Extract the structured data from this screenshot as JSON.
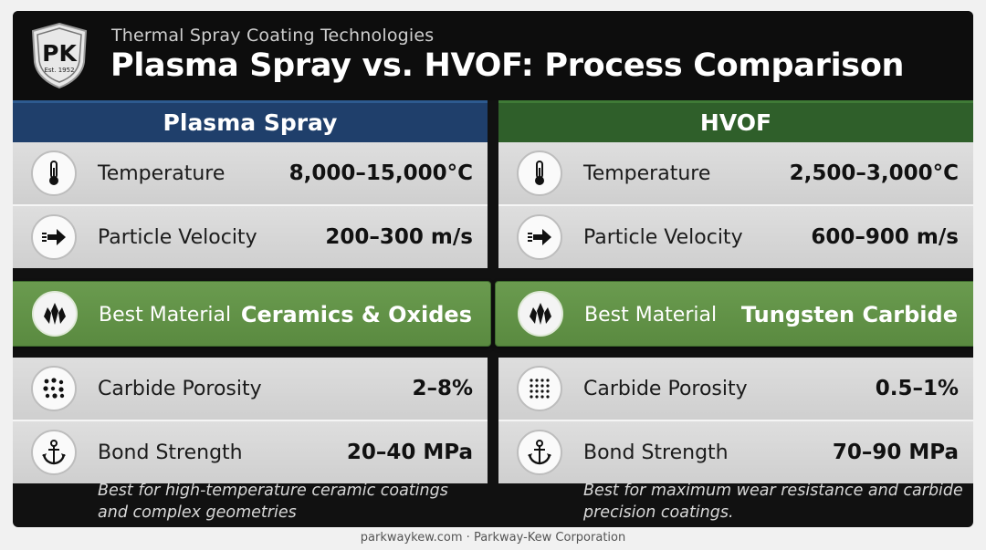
{
  "header": {
    "logo_text": "PK",
    "logo_est": "Est. 1952",
    "subtitle": "Thermal Spray Coating Technologies",
    "title": "Plasma Spray vs. HVOF: Process Comparison"
  },
  "columns": [
    {
      "heading": "Plasma Spray",
      "heading_color": "#1f3f6b",
      "rows": [
        {
          "icon": "thermometer-icon",
          "label": "Temperature",
          "value": "8,000–15,000°C"
        },
        {
          "icon": "arrow-right-icon",
          "label": "Particle Velocity",
          "value": "200–300 m/s"
        },
        {
          "icon": "crystal-icon",
          "label": "Best Material",
          "value": "Ceramics & Oxides",
          "highlight": true
        },
        {
          "icon": "porosity-dots-icon",
          "label": "Carbide Porosity",
          "value": "2–8%"
        },
        {
          "icon": "anchor-icon",
          "label": "Bond Strength",
          "value": "20–40 MPa"
        }
      ],
      "note": "Best for high-temperature ceramic coatings and complex geometries"
    },
    {
      "heading": "HVOF",
      "heading_color": "#2f5f2a",
      "rows": [
        {
          "icon": "thermometer-icon",
          "label": "Temperature",
          "value": "2,500–3,000°C"
        },
        {
          "icon": "arrow-right-icon",
          "label": "Particle Velocity",
          "value": "600–900 m/s"
        },
        {
          "icon": "crystal-icon",
          "label": "Best Material",
          "value": "Tungsten Carbide",
          "highlight": true
        },
        {
          "icon": "porosity-dots-icon",
          "label": "Carbide Porosity",
          "value": "0.5–1%"
        },
        {
          "icon": "anchor-icon",
          "label": "Bond Strength",
          "value": "70–90 MPa"
        }
      ],
      "note": "Best for maximum wear resistance and carbide precision coatings."
    }
  ],
  "highlight_color": "#5f9145",
  "footer": "parkwaykew.com · Parkway-Kew Corporation"
}
